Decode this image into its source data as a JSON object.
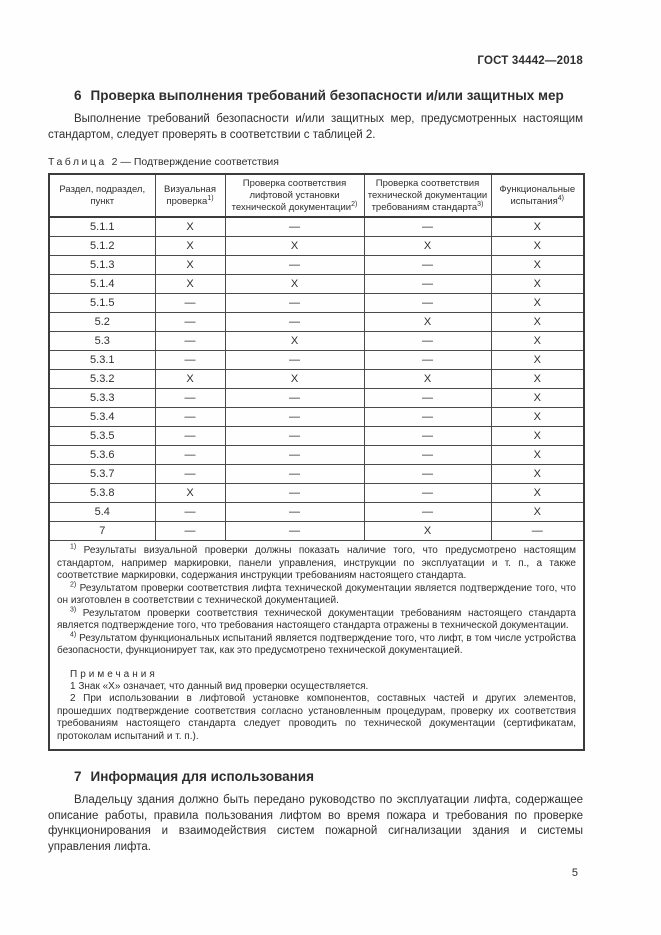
{
  "page": {
    "header": "ГОСТ 34442—2018",
    "number": "5"
  },
  "section6": {
    "num": "6",
    "title": "Проверка выполнения требований безопасности и/или защитных мер",
    "paragraph": "Выполнение требований безопасности и/или защитных мер, предусмотренных настоящим стандартом, следует проверять в соответствии с таблицей 2."
  },
  "table": {
    "caption_word": "Таблица",
    "caption_rest": "2 — Подтверждение соответствия",
    "columns": [
      {
        "label": "Раздел, подраздел, пункт",
        "sup": ""
      },
      {
        "label": "Визуальная проверка",
        "sup": "1)"
      },
      {
        "label": "Проверка соответствия лифтовой установки технической документации",
        "sup": "2)"
      },
      {
        "label": "Проверка соответствия технической документации требованиям стандарта",
        "sup": "3)"
      },
      {
        "label": "Функциональные испытания",
        "sup": "4)"
      }
    ],
    "rows": [
      [
        "5.1.1",
        "Х",
        "—",
        "—",
        "Х"
      ],
      [
        "5.1.2",
        "Х",
        "Х",
        "Х",
        "Х"
      ],
      [
        "5.1.3",
        "Х",
        "—",
        "—",
        "Х"
      ],
      [
        "5.1.4",
        "Х",
        "Х",
        "—",
        "Х"
      ],
      [
        "5.1.5",
        "—",
        "—",
        "—",
        "Х"
      ],
      [
        "5.2",
        "—",
        "—",
        "Х",
        "Х"
      ],
      [
        "5.3",
        "—",
        "Х",
        "—",
        "Х"
      ],
      [
        "5.3.1",
        "—",
        "—",
        "—",
        "Х"
      ],
      [
        "5.3.2",
        "Х",
        "Х",
        "Х",
        "Х"
      ],
      [
        "5.3.3",
        "—",
        "—",
        "—",
        "Х"
      ],
      [
        "5.3.4",
        "—",
        "—",
        "—",
        "Х"
      ],
      [
        "5.3.5",
        "—",
        "—",
        "—",
        "Х"
      ],
      [
        "5.3.6",
        "—",
        "—",
        "—",
        "Х"
      ],
      [
        "5.3.7",
        "—",
        "—",
        "—",
        "Х"
      ],
      [
        "5.3.8",
        "Х",
        "—",
        "—",
        "Х"
      ],
      [
        "5.4",
        "—",
        "—",
        "—",
        "Х"
      ],
      [
        "7",
        "—",
        "—",
        "Х",
        "—"
      ]
    ],
    "footnotes": [
      {
        "sup": "1)",
        "text": "Результаты визуальной проверки должны показать наличие того, что предусмотрено настоящим стандартом, например маркировки, панели управления, инструкции по эксплуатации и т. п., а также соответствие маркировки, содержания инструкции требованиям настоящего стандарта."
      },
      {
        "sup": "2)",
        "text": "Результатом проверки соответствия лифта технической документации является подтверждение того, что он изготовлен в соответствии с технической документацией."
      },
      {
        "sup": "3)",
        "text": "Результатом проверки соответствия технической документации требованиям настоящего стандарта является подтверждение того, что требования настоящего стандарта отражены в технической документации."
      },
      {
        "sup": "4)",
        "text": "Результатом функциональных испытаний является подтверждение того, что лифт, в том числе устройства безопасности, функционирует так, как это предусмотрено технической документацией."
      }
    ],
    "notes_title": "Примечания",
    "notes": [
      "1 Знак «Х» означает, что данный вид проверки осуществляется.",
      "2 При использовании в лифтовой установке компонентов, составных частей и других элементов, прошедших подтверждение соответствия согласно установленным процедурам, проверку их соответствия требованиям настоящего стандарта следует проводить по технической документации (сертификатам, протоколам испытаний и т. п.)."
    ]
  },
  "section7": {
    "num": "7",
    "title": "Информация для использования",
    "paragraph": "Владельцу здания должно быть передано руководство по эксплуатации лифта, содержащее описание работы, правила пользования лифтом во время пожара и требования по проверке функционирования и взаимодействия систем пожарной сигнализации здания и системы управления лифта."
  }
}
